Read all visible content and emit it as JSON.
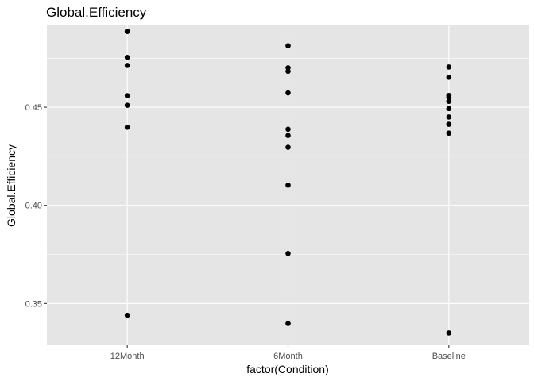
{
  "chart_data": {
    "type": "scatter",
    "title": "Global.Efficiency",
    "xlabel": "factor(Condition)",
    "ylabel": "Global.Efficiency",
    "categories": [
      "12Month",
      "6Month",
      "Baseline"
    ],
    "ylim": [
      0.3287,
      0.4917
    ],
    "yticks": [
      0.35,
      0.4,
      0.45
    ],
    "ytick_labels": [
      "0.35",
      "0.40",
      "0.45"
    ],
    "grid": true,
    "series": [
      {
        "name": "12Month",
        "values": [
          0.4887,
          0.4886,
          0.4754,
          0.4713,
          0.4559,
          0.451,
          0.4398,
          0.344
        ]
      },
      {
        "name": "6Month",
        "values": [
          0.4813,
          0.4701,
          0.4683,
          0.4573,
          0.4388,
          0.4356,
          0.4296,
          0.4103,
          0.3755,
          0.3398
        ]
      },
      {
        "name": "Baseline",
        "values": [
          0.4705,
          0.4653,
          0.456,
          0.455,
          0.453,
          0.4493,
          0.445,
          0.4413,
          0.4368,
          0.335
        ]
      }
    ],
    "colors": {
      "panel": "#e5e5e5",
      "grid": "#ffffff",
      "point": "#000000",
      "tick_text": "#4d4d4d"
    }
  }
}
